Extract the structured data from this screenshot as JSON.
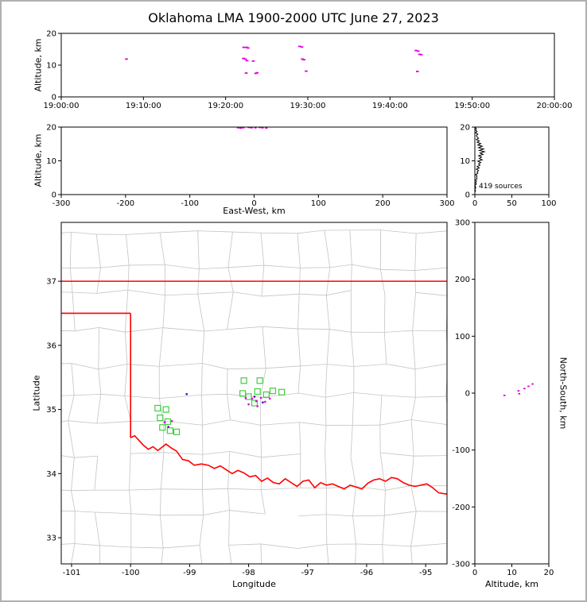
{
  "title": "Oklahoma LMA 1900-2000 UTC June 27, 2023",
  "colors": {
    "source_point": "#dd00dd",
    "source_point_dark": "#5500aa",
    "flash_square": "#44cc44",
    "state_border": "#ff0000",
    "county_line": "#c4c4c4",
    "histogram_line": "#000000",
    "axis": "#000000",
    "figure_border": "#b0b0b0"
  },
  "chart_data": [
    {
      "id": "time_altitude_panel",
      "type": "scatter",
      "ylabel": "Altitude, km",
      "xlim_seconds": [
        0,
        3600
      ],
      "ylim": [
        0,
        20
      ],
      "xtick_values": [
        0,
        600,
        1200,
        1800,
        2400,
        3000,
        3600
      ],
      "xtick_labels": [
        "19:00:00",
        "19:10:00",
        "19:20:00",
        "19:30:00",
        "19:40:00",
        "19:50:00",
        "20:00:00"
      ],
      "ytick_values": [
        0,
        10,
        20
      ],
      "ytick_labels": [
        "0",
        "10",
        "20"
      ],
      "points_time_alt": [
        [
          476,
          11.9
        ],
        [
          1332,
          15.6
        ],
        [
          1352,
          15.6
        ],
        [
          1364,
          15.4
        ],
        [
          1330,
          12.1
        ],
        [
          1344,
          11.9
        ],
        [
          1356,
          11.4
        ],
        [
          1402,
          11.3
        ],
        [
          1350,
          7.5
        ],
        [
          1420,
          7.4
        ],
        [
          1430,
          7.6
        ],
        [
          1740,
          15.9
        ],
        [
          1756,
          15.7
        ],
        [
          1760,
          11.9
        ],
        [
          1772,
          11.7
        ],
        [
          1788,
          8.1
        ],
        [
          2590,
          14.6
        ],
        [
          2606,
          14.4
        ],
        [
          2616,
          13.4
        ],
        [
          2628,
          13.3
        ],
        [
          2600,
          8.0
        ]
      ]
    },
    {
      "id": "eastwest_altitude_panel",
      "type": "scatter",
      "xlabel": "East-West, km",
      "ylabel": "Altitude, km",
      "xlim": [
        -300,
        300
      ],
      "ylim": [
        0,
        20
      ],
      "xtick_values": [
        -300,
        -200,
        -100,
        0,
        100,
        200,
        300
      ],
      "xtick_labels": [
        "-300",
        "-200",
        "-100",
        "0",
        "100",
        "200",
        "300"
      ],
      "ytick_values": [
        0,
        10,
        20
      ],
      "ytick_labels": [
        "0",
        "10",
        "20"
      ],
      "points_ew_alt": [
        [
          -25,
          19.8
        ],
        [
          -21,
          19.7
        ],
        [
          -17,
          19.8
        ],
        [
          -8,
          19.9
        ],
        [
          -4,
          19.8
        ],
        [
          2,
          19.8
        ],
        [
          9,
          19.9
        ],
        [
          13,
          19.8
        ],
        [
          19,
          19.7
        ]
      ]
    },
    {
      "id": "altitude_histogram_panel",
      "type": "line",
      "annotation": "419 sources",
      "xlim": [
        0,
        100
      ],
      "ylim": [
        0,
        20
      ],
      "xtick_values": [
        0,
        50,
        100
      ],
      "xtick_labels": [
        "0",
        "50",
        "100"
      ],
      "ytick_values": [
        0,
        10,
        20
      ],
      "ytick_labels": [
        "0",
        "10",
        "20"
      ],
      "profile_count_alt": [
        [
          0,
          20
        ],
        [
          2,
          19.5
        ],
        [
          1,
          19.1
        ],
        [
          3,
          18.7
        ],
        [
          1,
          18.3
        ],
        [
          4,
          17.9
        ],
        [
          2,
          17.5
        ],
        [
          3,
          17.1
        ],
        [
          5,
          16.7
        ],
        [
          2,
          16.3
        ],
        [
          6,
          15.9
        ],
        [
          3,
          15.5
        ],
        [
          8,
          15.1
        ],
        [
          4,
          14.7
        ],
        [
          10,
          14.3
        ],
        [
          5,
          13.9
        ],
        [
          12,
          13.5
        ],
        [
          6,
          13.1
        ],
        [
          13,
          12.7
        ],
        [
          7,
          12.3
        ],
        [
          11,
          11.9
        ],
        [
          5,
          11.5
        ],
        [
          9,
          11.1
        ],
        [
          6,
          10.7
        ],
        [
          10,
          10.3
        ],
        [
          4,
          9.9
        ],
        [
          8,
          9.5
        ],
        [
          5,
          9.1
        ],
        [
          7,
          8.7
        ],
        [
          3,
          8.3
        ],
        [
          6,
          7.9
        ],
        [
          2,
          7.5
        ],
        [
          5,
          7.1
        ],
        [
          3,
          6.7
        ],
        [
          4,
          6.3
        ],
        [
          1,
          5.9
        ],
        [
          3,
          5.5
        ],
        [
          2,
          5.1
        ],
        [
          3,
          4.7
        ],
        [
          1,
          4.3
        ],
        [
          2,
          3.9
        ],
        [
          1,
          3.5
        ],
        [
          2,
          3.1
        ],
        [
          0,
          2.7
        ],
        [
          1,
          2.3
        ],
        [
          1,
          1.9
        ],
        [
          0,
          1.5
        ],
        [
          1,
          1.1
        ],
        [
          0,
          0.8
        ]
      ]
    },
    {
      "id": "map_panel",
      "type": "scatter",
      "xlabel": "Longitude",
      "ylabel": "Latitude",
      "xlim": [
        -101.175,
        -94.638
      ],
      "ylim": [
        32.592,
        37.918
      ],
      "xtick_values": [
        -101,
        -100,
        -99,
        -98,
        -97,
        -96,
        -95
      ],
      "xtick_labels": [
        "-101",
        "-100",
        "-99",
        "-98",
        "-97",
        "-96",
        "-95"
      ],
      "ytick_values": [
        33,
        34,
        35,
        36,
        37
      ],
      "ytick_labels": [
        "33",
        "34",
        "35",
        "36",
        "37"
      ],
      "flash_squares_lon_lat": [
        [
          -98.08,
          35.45
        ],
        [
          -97.81,
          35.45
        ],
        [
          -98.1,
          35.25
        ],
        [
          -98.0,
          35.2
        ],
        [
          -97.85,
          35.28
        ],
        [
          -97.7,
          35.23
        ],
        [
          -97.59,
          35.29
        ],
        [
          -97.44,
          35.27
        ],
        [
          -97.9,
          35.1
        ],
        [
          -99.54,
          35.02
        ],
        [
          -99.4,
          35.0
        ],
        [
          -99.5,
          34.87
        ],
        [
          -99.37,
          34.81
        ],
        [
          -99.46,
          34.72
        ],
        [
          -99.33,
          34.67
        ],
        [
          -99.22,
          34.65
        ]
      ],
      "source_points_lon_lat": [
        [
          -97.94,
          35.17
        ],
        [
          -97.87,
          35.13
        ],
        [
          -97.79,
          35.18
        ],
        [
          -97.72,
          35.12
        ],
        [
          -98.0,
          35.08
        ],
        [
          -97.64,
          35.17
        ],
        [
          -97.85,
          35.05
        ],
        [
          -99.42,
          34.8
        ],
        [
          -99.3,
          34.82
        ],
        [
          -98.05,
          35.18
        ]
      ],
      "source_points_dark_lon_lat": [
        [
          -97.9,
          35.2
        ],
        [
          -97.76,
          35.11
        ],
        [
          -99.05,
          35.24
        ],
        [
          -99.36,
          34.73
        ]
      ],
      "state_boundary": {
        "kansas_border_lat": 37,
        "panhandle_border_lat": 36.5,
        "texas_border_lon": -100,
        "red_river_lon_lat": [
          [
            -100.0,
            34.56
          ],
          [
            -99.93,
            34.59
          ],
          [
            -99.86,
            34.52
          ],
          [
            -99.78,
            34.44
          ],
          [
            -99.7,
            34.38
          ],
          [
            -99.62,
            34.42
          ],
          [
            -99.54,
            34.36
          ],
          [
            -99.47,
            34.41
          ],
          [
            -99.4,
            34.46
          ],
          [
            -99.31,
            34.4
          ],
          [
            -99.22,
            34.35
          ],
          [
            -99.12,
            34.22
          ],
          [
            -99.02,
            34.2
          ],
          [
            -98.92,
            34.13
          ],
          [
            -98.8,
            34.15
          ],
          [
            -98.68,
            34.13
          ],
          [
            -98.58,
            34.08
          ],
          [
            -98.48,
            34.12
          ],
          [
            -98.38,
            34.06
          ],
          [
            -98.28,
            34.0
          ],
          [
            -98.18,
            34.05
          ],
          [
            -98.08,
            34.01
          ],
          [
            -97.98,
            33.95
          ],
          [
            -97.88,
            33.97
          ],
          [
            -97.78,
            33.88
          ],
          [
            -97.68,
            33.93
          ],
          [
            -97.58,
            33.86
          ],
          [
            -97.48,
            33.84
          ],
          [
            -97.38,
            33.92
          ],
          [
            -97.28,
            33.86
          ],
          [
            -97.18,
            33.8
          ],
          [
            -97.08,
            33.88
          ],
          [
            -96.98,
            33.9
          ],
          [
            -96.88,
            33.78
          ],
          [
            -96.78,
            33.86
          ],
          [
            -96.68,
            33.82
          ],
          [
            -96.58,
            33.84
          ],
          [
            -96.48,
            33.8
          ],
          [
            -96.38,
            33.76
          ],
          [
            -96.28,
            33.82
          ],
          [
            -96.18,
            33.79
          ],
          [
            -96.08,
            33.76
          ],
          [
            -95.98,
            33.85
          ],
          [
            -95.88,
            33.9
          ],
          [
            -95.78,
            33.92
          ],
          [
            -95.68,
            33.88
          ],
          [
            -95.58,
            33.94
          ],
          [
            -95.48,
            33.92
          ],
          [
            -95.38,
            33.86
          ],
          [
            -95.28,
            33.82
          ],
          [
            -95.18,
            33.8
          ],
          [
            -95.08,
            33.82
          ],
          [
            -94.98,
            33.84
          ],
          [
            -94.88,
            33.78
          ],
          [
            -94.78,
            33.7
          ],
          [
            -94.64,
            33.68
          ]
        ]
      }
    },
    {
      "id": "northsouth_altitude_panel",
      "type": "scatter",
      "xlabel": "Altitude, km",
      "ylabel": "North-South, km",
      "xlim": [
        0,
        20
      ],
      "ylim": [
        -300,
        300
      ],
      "xtick_values": [
        0,
        10,
        20
      ],
      "xtick_labels": [
        "0",
        "10",
        "20"
      ],
      "ytick_values": [
        300,
        200,
        100,
        0,
        -100,
        -200,
        -300
      ],
      "ytick_labels": [
        "300",
        "200",
        "100",
        "0",
        "-100",
        "-200",
        "-300"
      ],
      "points_alt_ns": [
        [
          11.8,
          4
        ],
        [
          13.4,
          8
        ],
        [
          14.5,
          12
        ],
        [
          8.0,
          -4
        ],
        [
          15.6,
          16
        ],
        [
          12.0,
          -1
        ]
      ]
    }
  ]
}
